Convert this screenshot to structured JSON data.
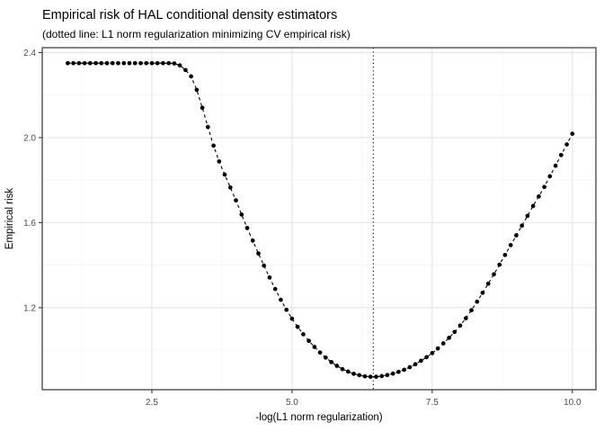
{
  "header": {
    "title": "Empirical risk of HAL conditional density estimators",
    "subtitle": "(dotted line: L1 norm regularization minimizing CV empirical risk)"
  },
  "chart_data": {
    "type": "scatter",
    "title": "Empirical risk of HAL conditional density estimators",
    "subtitle": "(dotted line: L1 norm regularization minimizing CV empirical risk)",
    "xlabel": "-log(L1 norm regularization)",
    "ylabel": "Empirical risk",
    "xlim": [
      0.545,
      10.42
    ],
    "ylim": [
      0.814,
      2.423
    ],
    "x_ticks": [
      2.5,
      5.0,
      7.5,
      10.0
    ],
    "x_tick_labels": [
      "2.5",
      "5.0",
      "7.5",
      "10.0"
    ],
    "y_ticks": [
      1.2,
      1.6,
      2.0,
      2.4
    ],
    "y_tick_labels": [
      "1.2",
      "1.6",
      "2.0",
      "2.4"
    ],
    "x_minor_ticks": [
      1.25,
      3.75,
      6.25,
      8.75
    ],
    "y_minor_ticks": [
      1.0,
      1.4,
      1.8,
      2.2
    ],
    "grid": true,
    "legend_position": "none",
    "vline_x": 6.45,
    "vline_style": "dotted",
    "line_style": "dashed",
    "marker": "filled-circle",
    "colors": {
      "points": "#000000",
      "line": "#000000",
      "vline": "#000000",
      "grid_major": "#e4e4e4",
      "grid_minor": "#f1f1f1",
      "panel_border": "#333333",
      "tick_mark": "#333333",
      "axis_text": "#4a4a4a",
      "background": "#ffffff"
    },
    "points": [
      [
        1.0,
        2.35
      ],
      [
        1.1,
        2.35
      ],
      [
        1.2,
        2.35
      ],
      [
        1.3,
        2.35
      ],
      [
        1.4,
        2.35
      ],
      [
        1.5,
        2.35
      ],
      [
        1.6,
        2.35
      ],
      [
        1.7,
        2.35
      ],
      [
        1.8,
        2.35
      ],
      [
        1.9,
        2.35
      ],
      [
        2.0,
        2.35
      ],
      [
        2.1,
        2.35
      ],
      [
        2.2,
        2.35
      ],
      [
        2.3,
        2.35
      ],
      [
        2.4,
        2.35
      ],
      [
        2.5,
        2.35
      ],
      [
        2.6,
        2.35
      ],
      [
        2.7,
        2.35
      ],
      [
        2.8,
        2.35
      ],
      [
        2.9,
        2.349
      ],
      [
        3.0,
        2.34
      ],
      [
        3.1,
        2.318
      ],
      [
        3.2,
        2.288
      ],
      [
        3.3,
        2.225
      ],
      [
        3.4,
        2.14
      ],
      [
        3.5,
        2.05
      ],
      [
        3.6,
        1.962
      ],
      [
        3.7,
        1.888
      ],
      [
        3.8,
        1.826
      ],
      [
        3.9,
        1.765
      ],
      [
        4.0,
        1.705
      ],
      [
        4.1,
        1.638
      ],
      [
        4.2,
        1.575
      ],
      [
        4.3,
        1.515
      ],
      [
        4.4,
        1.455
      ],
      [
        4.5,
        1.398
      ],
      [
        4.6,
        1.342
      ],
      [
        4.7,
        1.288
      ],
      [
        4.8,
        1.237
      ],
      [
        4.9,
        1.19
      ],
      [
        5.0,
        1.148
      ],
      [
        5.1,
        1.11
      ],
      [
        5.2,
        1.075
      ],
      [
        5.3,
        1.044
      ],
      [
        5.4,
        1.015
      ],
      [
        5.5,
        0.989
      ],
      [
        5.6,
        0.965
      ],
      [
        5.7,
        0.944
      ],
      [
        5.8,
        0.926
      ],
      [
        5.9,
        0.911
      ],
      [
        6.0,
        0.899
      ],
      [
        6.1,
        0.889
      ],
      [
        6.2,
        0.882
      ],
      [
        6.3,
        0.877
      ],
      [
        6.4,
        0.875
      ],
      [
        6.5,
        0.875
      ],
      [
        6.6,
        0.878
      ],
      [
        6.7,
        0.883
      ],
      [
        6.8,
        0.89
      ],
      [
        6.9,
        0.898
      ],
      [
        7.0,
        0.908
      ],
      [
        7.1,
        0.92
      ],
      [
        7.2,
        0.934
      ],
      [
        7.3,
        0.95
      ],
      [
        7.4,
        0.967
      ],
      [
        7.5,
        0.986
      ],
      [
        7.6,
        1.008
      ],
      [
        7.7,
        1.032
      ],
      [
        7.8,
        1.058
      ],
      [
        7.9,
        1.086
      ],
      [
        8.0,
        1.116
      ],
      [
        8.1,
        1.15
      ],
      [
        8.2,
        1.188
      ],
      [
        8.3,
        1.228
      ],
      [
        8.4,
        1.27
      ],
      [
        8.5,
        1.313
      ],
      [
        8.6,
        1.357
      ],
      [
        8.7,
        1.402
      ],
      [
        8.8,
        1.448
      ],
      [
        8.9,
        1.494
      ],
      [
        9.0,
        1.54
      ],
      [
        9.1,
        1.586
      ],
      [
        9.2,
        1.632
      ],
      [
        9.3,
        1.678
      ],
      [
        9.4,
        1.723
      ],
      [
        9.5,
        1.768
      ],
      [
        9.6,
        1.818
      ],
      [
        9.7,
        1.868
      ],
      [
        9.8,
        1.918
      ],
      [
        9.9,
        1.968
      ],
      [
        10.0,
        2.018
      ]
    ]
  }
}
